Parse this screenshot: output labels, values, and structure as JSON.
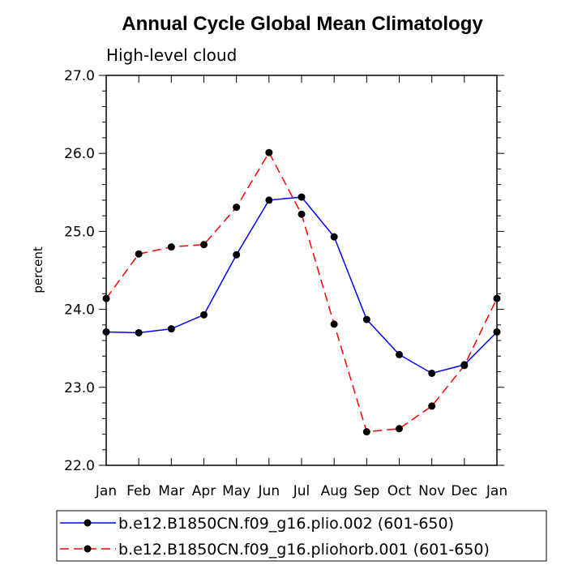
{
  "chart_data": {
    "type": "line",
    "title": "Annual Cycle Global Mean Climatology",
    "subtitle": "High-level cloud",
    "xlabel": "",
    "ylabel": "percent",
    "categories": [
      "Jan",
      "Feb",
      "Mar",
      "Apr",
      "May",
      "Jun",
      "Jul",
      "Aug",
      "Sep",
      "Oct",
      "Nov",
      "Dec",
      "Jan"
    ],
    "ylim": [
      22.0,
      27.0
    ],
    "yticks": [
      "22.0",
      "23.0",
      "24.0",
      "25.0",
      "26.0",
      "27.0"
    ],
    "series": [
      {
        "name": "b.e12.B1850CN.f09_g16.plio.002 (601-650)",
        "color": "#0000ff",
        "dash": "solid",
        "values": [
          23.71,
          23.7,
          23.75,
          23.93,
          24.7,
          25.4,
          25.44,
          24.93,
          23.87,
          23.42,
          23.18,
          23.29,
          23.71
        ]
      },
      {
        "name": "b.e12.B1850CN.f09_g16.pliohorb.001 (601-650)",
        "color": "#ff0000",
        "dash": "dashed",
        "values": [
          24.14,
          24.71,
          24.8,
          24.83,
          25.31,
          26.01,
          25.22,
          23.81,
          22.43,
          22.47,
          22.76,
          23.28,
          24.14
        ]
      }
    ],
    "grid": false,
    "legend_position": "bottom"
  }
}
